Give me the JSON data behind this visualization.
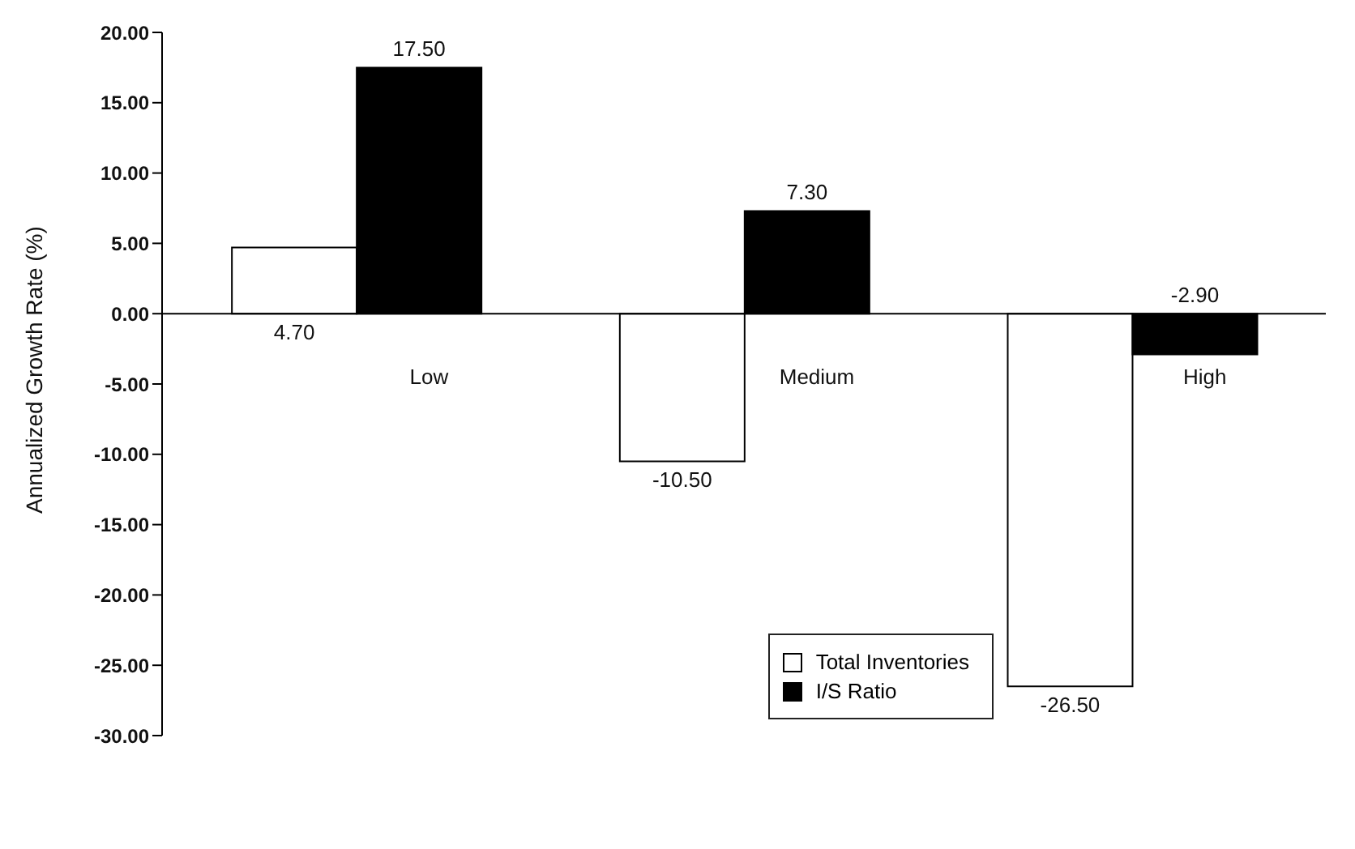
{
  "chart_data": {
    "type": "bar",
    "ylabel": "Annualized Growth Rate (%)",
    "categories": [
      "Low",
      "Medium",
      "High"
    ],
    "series": [
      {
        "name": "Total Inventories",
        "color": "#ffffff",
        "values": [
          4.7,
          -10.5,
          -26.5
        ],
        "value_labels": [
          "4.70",
          "-10.50",
          "-26.50"
        ]
      },
      {
        "name": "I/S Ratio",
        "color": "#000000",
        "values": [
          17.5,
          7.3,
          -2.9
        ],
        "value_labels": [
          "17.50",
          "7.30",
          "-2.90"
        ]
      }
    ],
    "ylim": [
      -30,
      20
    ],
    "yticks": [
      {
        "value": 20,
        "label": "20.00"
      },
      {
        "value": 15,
        "label": "15.00"
      },
      {
        "value": 10,
        "label": "10.00"
      },
      {
        "value": 5,
        "label": "5.00"
      },
      {
        "value": 0,
        "label": "0.00"
      },
      {
        "value": -5,
        "label": "-5.00"
      },
      {
        "value": -10,
        "label": "-10.00"
      },
      {
        "value": -15,
        "label": "-15.00"
      },
      {
        "value": -20,
        "label": "-20.00"
      },
      {
        "value": -25,
        "label": "-25.00"
      },
      {
        "value": -30,
        "label": "-30.00"
      }
    ],
    "grid": false,
    "legend": "bottom right"
  }
}
